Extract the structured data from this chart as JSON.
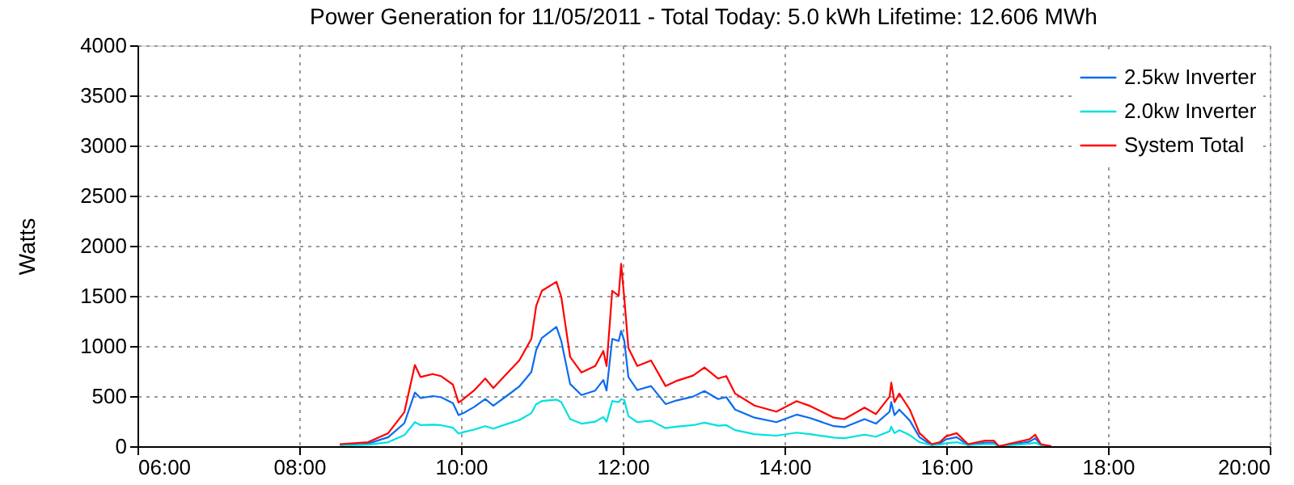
{
  "chart_data": {
    "type": "line",
    "title": "Power Generation for 11/05/2011 - Total Today: 5.0 kWh   Lifetime: 12.606 MWh",
    "ylabel": "Watts",
    "xlim": [
      6,
      20
    ],
    "xticks": [
      {
        "value": 6,
        "label": "06:00"
      },
      {
        "value": 8,
        "label": "08:00"
      },
      {
        "value": 10,
        "label": "10:00"
      },
      {
        "value": 12,
        "label": "12:00"
      },
      {
        "value": 14,
        "label": "14:00"
      },
      {
        "value": 16,
        "label": "16:00"
      },
      {
        "value": 18,
        "label": "18:00"
      },
      {
        "value": 20,
        "label": "20:00"
      }
    ],
    "ylim": [
      0,
      4000
    ],
    "yticks": [
      0,
      500,
      1000,
      1500,
      2000,
      2500,
      3000,
      3500,
      4000
    ],
    "grid": true,
    "legend": "top right",
    "marker": "none",
    "line_style": "solid",
    "x": [
      8.5,
      8.85,
      9.1,
      9.3,
      9.43,
      9.5,
      9.65,
      9.75,
      9.9,
      9.97,
      10.03,
      10.16,
      10.3,
      10.4,
      10.58,
      10.72,
      10.87,
      10.93,
      11.0,
      11.18,
      11.24,
      11.35,
      11.49,
      11.66,
      11.76,
      11.8,
      11.87,
      11.95,
      11.98,
      12.02,
      12.07,
      12.18,
      12.35,
      12.53,
      12.66,
      12.87,
      13.01,
      13.18,
      13.28,
      13.39,
      13.63,
      13.9,
      14.15,
      14.32,
      14.61,
      14.74,
      14.99,
      15.13,
      15.3,
      15.32,
      15.36,
      15.42,
      15.55,
      15.67,
      15.82,
      15.92,
      16.0,
      16.13,
      16.27,
      16.48,
      16.59,
      16.65,
      17.03,
      17.1,
      17.17,
      17.3
    ],
    "series": [
      {
        "name": "2.5kw Inverter",
        "color": "#0a6cf0",
        "values": [
          10,
          25,
          90,
          230,
          535,
          480,
          500,
          490,
          430,
          310,
          330,
          390,
          470,
          405,
          510,
          595,
          740,
          960,
          1080,
          1190,
          1050,
          620,
          510,
          555,
          660,
          555,
          1070,
          1050,
          1150,
          1050,
          690,
          560,
          600,
          420,
          455,
          495,
          550,
          470,
          490,
          365,
          285,
          240,
          315,
          280,
          200,
          190,
          270,
          225,
          345,
          440,
          310,
          365,
          255,
          90,
          10,
          25,
          70,
          90,
          10,
          35,
          35,
          0,
          45,
          80,
          10,
          0
        ]
      },
      {
        "name": "2.0kw Inverter",
        "color": "#00e0e0",
        "values": [
          5,
          15,
          40,
          110,
          240,
          210,
          215,
          210,
          185,
          125,
          140,
          165,
          200,
          175,
          225,
          260,
          330,
          420,
          450,
          465,
          440,
          270,
          225,
          245,
          290,
          245,
          450,
          440,
          470,
          460,
          300,
          240,
          255,
          180,
          195,
          210,
          235,
          205,
          210,
          160,
          120,
          105,
          135,
          120,
          85,
          80,
          115,
          95,
          150,
          195,
          130,
          160,
          110,
          40,
          10,
          15,
          30,
          40,
          10,
          20,
          20,
          0,
          25,
          35,
          10,
          0
        ]
      },
      {
        "name": "System Total",
        "color": "#ff0000",
        "values": [
          20,
          40,
          130,
          340,
          810,
          690,
          720,
          700,
          615,
          435,
          470,
          555,
          675,
          580,
          735,
          855,
          1070,
          1400,
          1550,
          1640,
          1490,
          890,
          735,
          800,
          950,
          800,
          1550,
          1500,
          1820,
          1470,
          980,
          800,
          855,
          600,
          650,
          705,
          785,
          675,
          700,
          525,
          405,
          345,
          450,
          400,
          285,
          270,
          385,
          320,
          495,
          635,
          440,
          525,
          365,
          130,
          20,
          40,
          100,
          130,
          20,
          55,
          55,
          0,
          70,
          115,
          20,
          0
        ]
      }
    ]
  }
}
